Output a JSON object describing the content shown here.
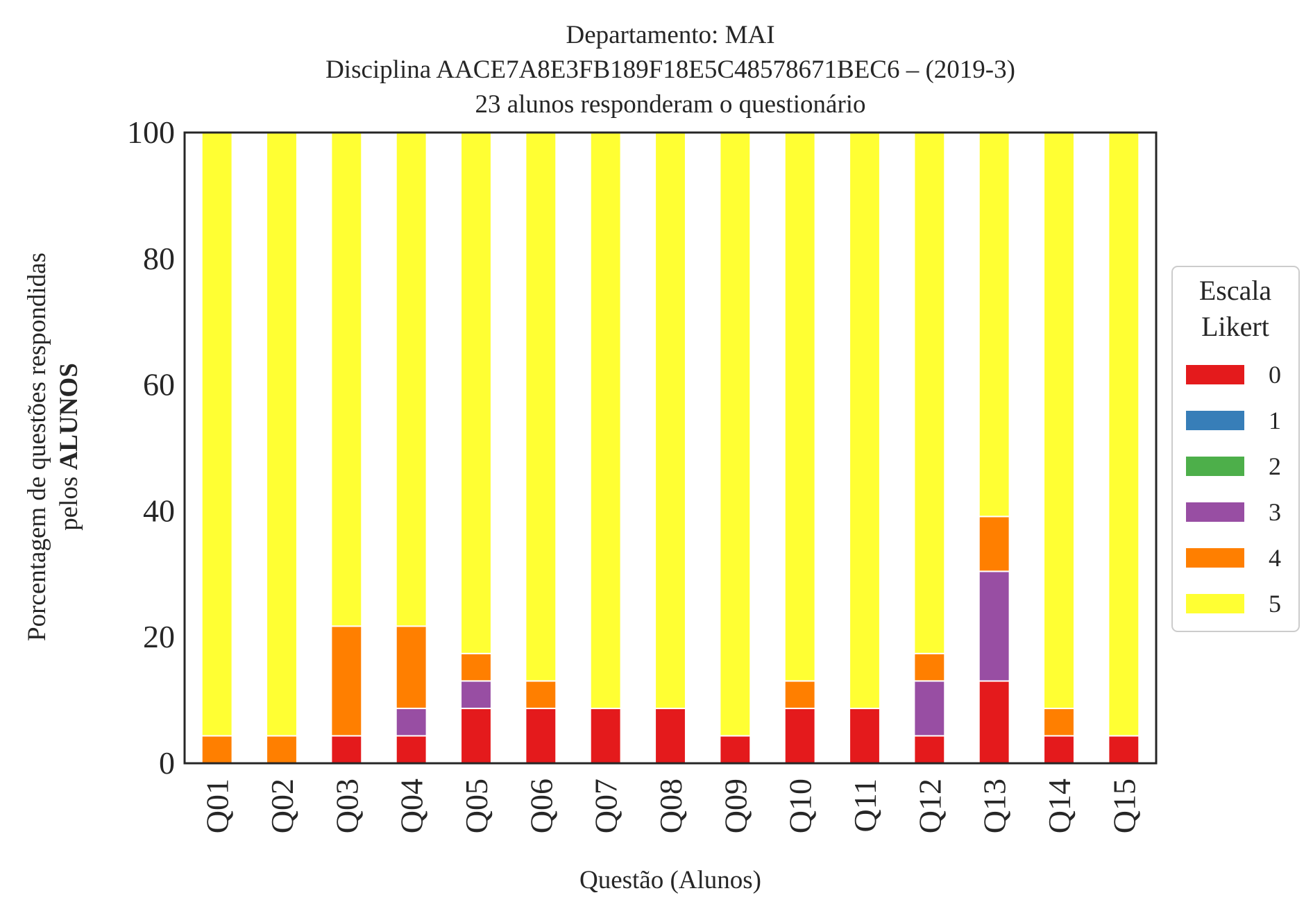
{
  "chart_data": {
    "type": "bar",
    "stacked": true,
    "title": [
      "Departamento: MAI",
      "Disciplina AACE7A8E3FB189F18E5C48578671BEC6 – (2019-3)",
      "23 alunos responderam o questionário"
    ],
    "xlabel": "Questão (Alunos)",
    "ylabel_line1": "Porcentagem de questões respondidas",
    "ylabel_line2_prefix": "pelos ",
    "ylabel_line2_bold": "ALUNOS",
    "ylim": [
      0,
      100
    ],
    "yticks": [
      "0",
      "20",
      "40",
      "60",
      "80",
      "100"
    ],
    "categories": [
      "Q01",
      "Q02",
      "Q03",
      "Q04",
      "Q05",
      "Q06",
      "Q07",
      "Q08",
      "Q09",
      "Q10",
      "Q11",
      "Q12",
      "Q13",
      "Q14",
      "Q15"
    ],
    "legend": {
      "title_line1": "Escala",
      "title_line2": "Likert",
      "placement": "right",
      "entries": [
        "0",
        "1",
        "2",
        "3",
        "4",
        "5"
      ]
    },
    "series": [
      {
        "name": "0",
        "color": "#e41a1c",
        "values": [
          0,
          0,
          4.35,
          4.35,
          8.7,
          8.7,
          8.7,
          8.7,
          4.35,
          8.7,
          8.7,
          4.35,
          13.04,
          4.35,
          4.35
        ]
      },
      {
        "name": "1",
        "color": "#377eb8",
        "values": [
          0,
          0,
          0,
          0,
          0,
          0,
          0,
          0,
          0,
          0,
          0,
          0,
          0,
          0,
          0
        ]
      },
      {
        "name": "2",
        "color": "#4daf4a",
        "values": [
          0,
          0,
          0,
          0,
          0,
          0,
          0,
          0,
          0,
          0,
          0,
          0,
          0,
          0,
          0
        ]
      },
      {
        "name": "3",
        "color": "#984ea3",
        "values": [
          0,
          0,
          0,
          4.35,
          4.35,
          0,
          0,
          0,
          0,
          0,
          0,
          8.7,
          17.39,
          0,
          0
        ]
      },
      {
        "name": "4",
        "color": "#ff7f00",
        "values": [
          4.35,
          4.35,
          17.39,
          13.04,
          4.35,
          4.35,
          0,
          0,
          0,
          4.35,
          0,
          4.35,
          8.7,
          4.35,
          0
        ]
      },
      {
        "name": "5",
        "color": "#ffff33",
        "values": [
          95.65,
          95.65,
          78.26,
          78.26,
          82.6,
          86.95,
          91.3,
          91.3,
          95.65,
          86.95,
          91.3,
          82.6,
          60.87,
          91.3,
          95.65
        ]
      }
    ]
  }
}
